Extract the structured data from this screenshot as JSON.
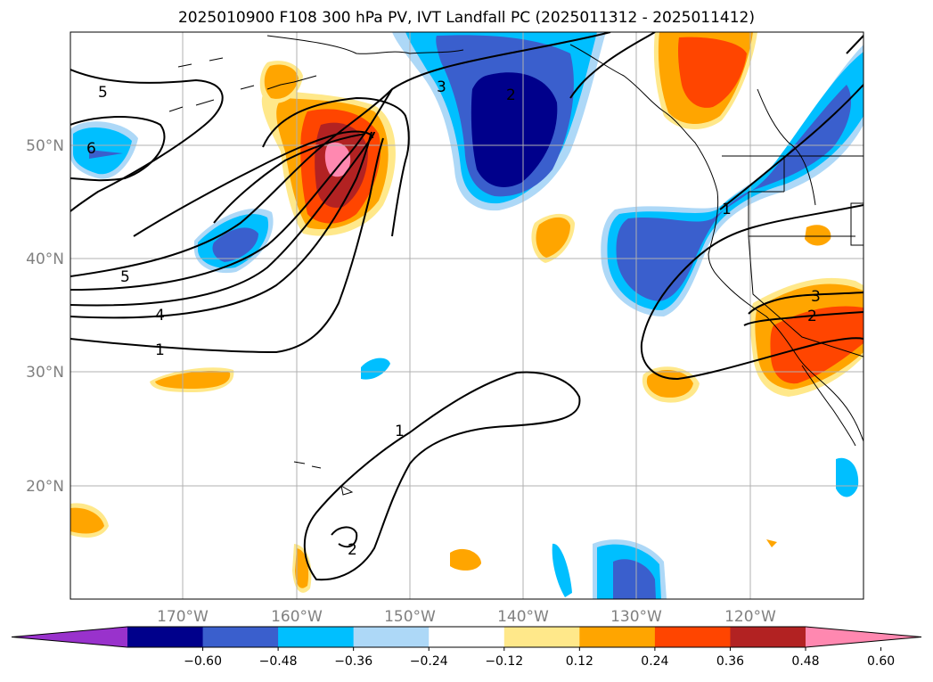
{
  "title": "2025010900 F108 300 hPa PV, IVT Landfall PC (2025011312 - 2025011412)",
  "map": {
    "lat_labels": [
      "50°N",
      "40°N",
      "30°N",
      "20°N"
    ],
    "lon_labels": [
      "170°W",
      "160°W",
      "150°W",
      "140°W",
      "130°W",
      "120°W"
    ],
    "gridlines": true
  },
  "colorbar": {
    "ticks": [
      "−0.60",
      "−0.48",
      "−0.36",
      "−0.24",
      "−0.12",
      "0.12",
      "0.24",
      "0.36",
      "0.48",
      "0.60"
    ],
    "colors": [
      "#9932cc",
      "#00008b",
      "#3a5fcd",
      "#00bfff",
      "#add8f7",
      "#ffffff",
      "#ffe88a",
      "#ffa500",
      "#ff4500",
      "#b22222",
      "#ff88b0"
    ],
    "extend": "both"
  },
  "contours": {
    "pv_labels": [
      "5",
      "6",
      "3",
      "2",
      "5",
      "4",
      "1",
      "1",
      "2",
      "1",
      "3",
      "2"
    ]
  }
}
